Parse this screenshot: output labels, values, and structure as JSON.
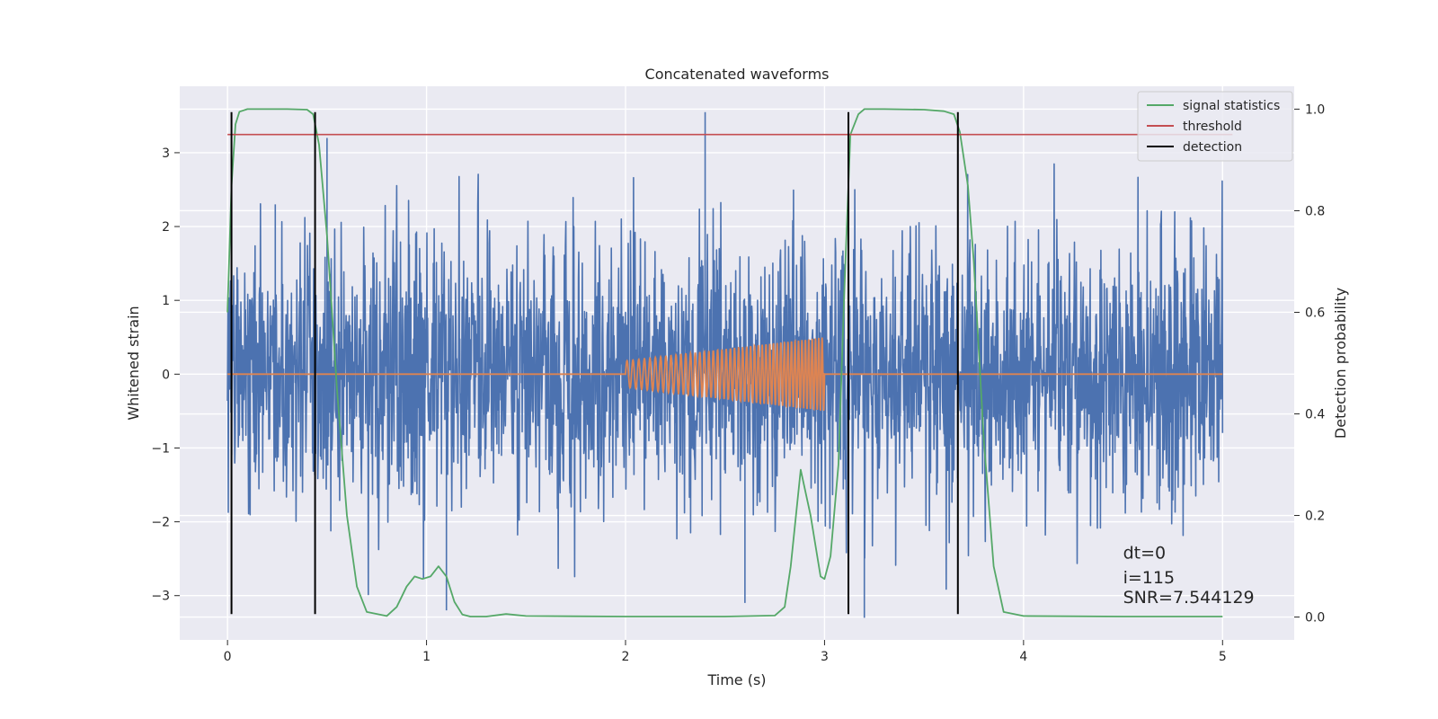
{
  "chart_data": {
    "type": "line",
    "title": "Concatenated waveforms",
    "xlabel": "Time (s)",
    "ylabel": "Whitened strain",
    "y2label": "Detection probability",
    "xlim": [
      -0.24,
      5.36
    ],
    "ylim": [
      -3.6,
      3.9
    ],
    "y2lim": [
      -0.045,
      1.045
    ],
    "xticks": [
      0,
      1,
      2,
      3,
      4,
      5
    ],
    "xtick_labels": [
      "0",
      "1",
      "2",
      "3",
      "4",
      "5"
    ],
    "yticks": [
      -3,
      -2,
      -1,
      0,
      1,
      2,
      3
    ],
    "ytick_labels": [
      "−3",
      "−2",
      "−1",
      "0",
      "1",
      "2",
      "3"
    ],
    "y2ticks": [
      0.0,
      0.2,
      0.4,
      0.6,
      0.8,
      1.0
    ],
    "y2tick_labels": [
      "0.0",
      "0.2",
      "0.4",
      "0.6",
      "0.8",
      "1.0"
    ],
    "grid": true,
    "legend_position": "top-right",
    "colors": {
      "background": "#eaeaf2",
      "grid": "#ffffff",
      "noise": "#4c72b0",
      "template": "#dd8452",
      "statistic": "#55a868",
      "threshold": "#c44e52",
      "detection": "#000000"
    },
    "series": [
      {
        "name": "",
        "role": "noise",
        "axis": "left",
        "x_range": [
          0,
          5
        ],
        "typical_amplitude": 1.3,
        "peak_values": [
          [
            0.24,
            2.3
          ],
          [
            0.5,
            3.2
          ],
          [
            1.1,
            -3.2
          ],
          [
            2.4,
            3.55
          ],
          [
            2.6,
            -3.1
          ],
          [
            3.2,
            -3.3
          ]
        ]
      },
      {
        "name": "",
        "role": "template",
        "axis": "left",
        "x": [
          0,
          2.0,
          3.0,
          5.0
        ],
        "amplitude_start": 0.18,
        "amplitude_end": 0.5,
        "cycles": 47
      },
      {
        "name": "signal statistics",
        "axis": "right",
        "x": [
          0.0,
          0.02,
          0.04,
          0.06,
          0.1,
          0.2,
          0.3,
          0.4,
          0.43,
          0.46,
          0.5,
          0.55,
          0.6,
          0.65,
          0.7,
          0.8,
          0.85,
          0.9,
          0.94,
          0.98,
          1.02,
          1.06,
          1.1,
          1.14,
          1.18,
          1.22,
          1.3,
          1.4,
          1.5,
          2.0,
          2.5,
          2.75,
          2.8,
          2.83,
          2.88,
          2.93,
          2.98,
          3.0,
          3.03,
          3.07,
          3.1,
          3.13,
          3.17,
          3.2,
          3.25,
          3.3,
          3.5,
          3.6,
          3.65,
          3.68,
          3.72,
          3.75,
          3.8,
          3.85,
          3.9,
          4.0,
          4.5,
          5.0
        ],
        "y": [
          0.6,
          0.85,
          0.97,
          0.995,
          1.0,
          1.0,
          1.0,
          0.999,
          0.99,
          0.93,
          0.75,
          0.45,
          0.2,
          0.06,
          0.01,
          0.002,
          0.02,
          0.06,
          0.08,
          0.075,
          0.08,
          0.1,
          0.08,
          0.03,
          0.005,
          0.001,
          0.001,
          0.006,
          0.002,
          0.001,
          0.001,
          0.003,
          0.02,
          0.1,
          0.29,
          0.2,
          0.08,
          0.075,
          0.12,
          0.3,
          0.65,
          0.95,
          0.99,
          1.0,
          1.0,
          1.0,
          0.999,
          0.996,
          0.99,
          0.955,
          0.85,
          0.7,
          0.35,
          0.1,
          0.01,
          0.002,
          0.001,
          0.001
        ]
      },
      {
        "name": "threshold",
        "axis": "right",
        "x": [
          0,
          5.05
        ],
        "y": [
          0.95,
          0.95
        ]
      },
      {
        "name": "detection",
        "axis": "left",
        "x": [
          0.02,
          0.44,
          3.12,
          3.67
        ],
        "y_range": [
          -3.25,
          3.55
        ]
      }
    ],
    "annotations": [
      {
        "text": "dt=0",
        "x": 4.5,
        "y": -2.5
      },
      {
        "text": "i=115",
        "x": 4.5,
        "y": -2.83
      },
      {
        "text": "SNR=7.544129",
        "x": 4.5,
        "y": -3.1
      }
    ]
  }
}
